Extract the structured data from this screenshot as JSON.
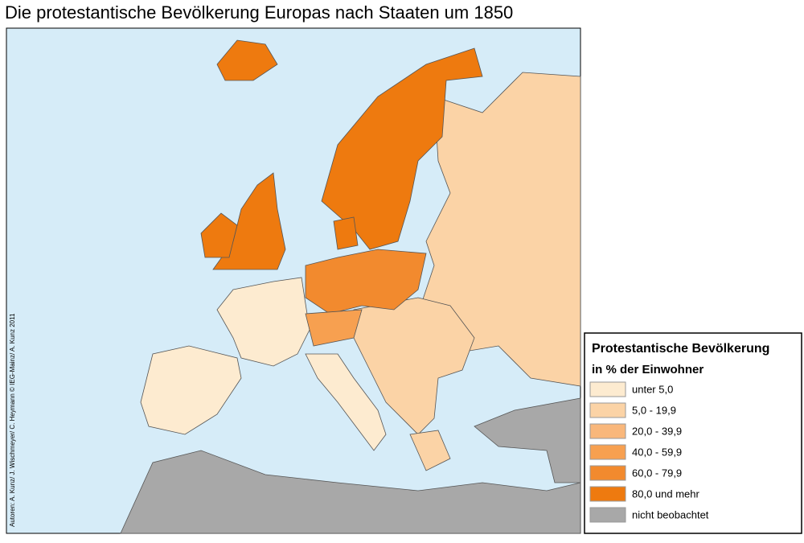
{
  "title": "Die protestantische Bevölkerung Europas nach Staaten um 1850",
  "credit": "Autoren: A. Kunz/ J. Wischmeyer/ C. Heymann © IEG-Mainz/ A. Kunz 2011",
  "legend": {
    "title": "Protestantische Bevölkerung",
    "subtitle": "in % der Einwohner",
    "items": [
      {
        "label": "unter  5,0",
        "color": "#fdebd0"
      },
      {
        "label": "5,0 - 19,9",
        "color": "#fbd3a6"
      },
      {
        "label": "20,0 - 39,9",
        "color": "#f9b77b"
      },
      {
        "label": "40,0 - 59,9",
        "color": "#f7a050"
      },
      {
        "label": "60,0 - 79,9",
        "color": "#f28a2e"
      },
      {
        "label": "80,0 und mehr",
        "color": "#ee7a0f"
      },
      {
        "label": "nicht beobachtet",
        "color": "#a8a8a8"
      }
    ]
  }
}
